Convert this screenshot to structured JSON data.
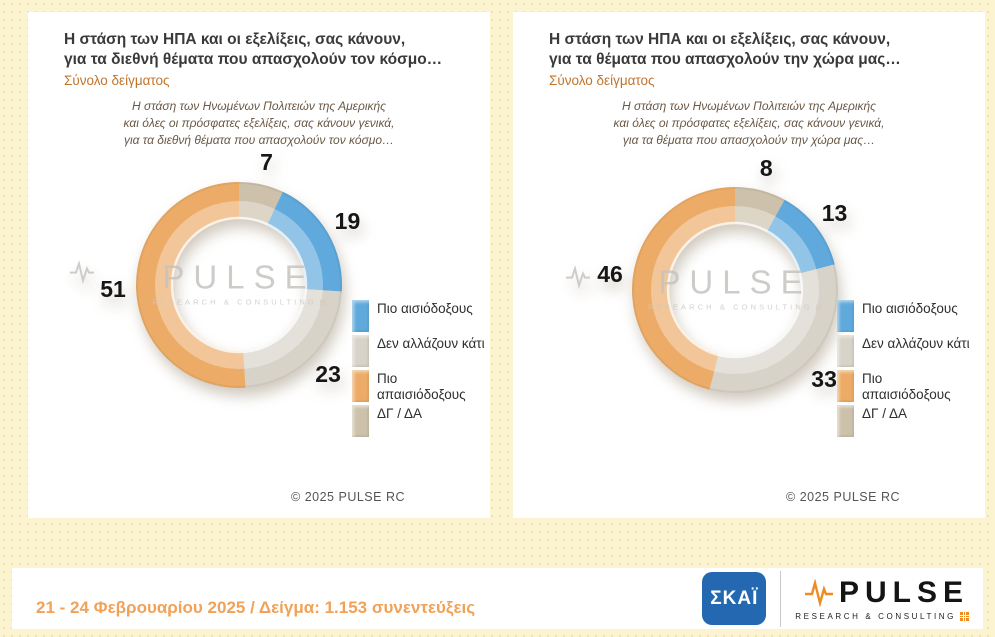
{
  "legend": {
    "items": [
      {
        "label": "Πιο αισιόδοξους",
        "color": "#5fa9dc"
      },
      {
        "label": "Δεν αλλάζουν κάτι",
        "color": "#d8d3c9"
      },
      {
        "label": "Πιο απαισιόδοξους",
        "color": "#ecac68"
      },
      {
        "label": "ΔΓ / ΔΑ",
        "color": "#cdc1ab"
      }
    ],
    "position": "right"
  },
  "watermark": {
    "name": "PULSE",
    "sub": "RESEARCH & CONSULTING"
  },
  "footer": {
    "note": "21 - 24 Φεβρουαρίου 2025  /  Δείγμα:  1.153 συνεντεύξεις",
    "skai_logo": "ΣΚΑΪ",
    "pulse_logo": "PULSE",
    "pulse_logo_sub": "RESEARCH & CONSULTING"
  },
  "chart_data": [
    {
      "type": "pie",
      "style": "donut",
      "title_lines": [
        "Η στάση των ΗΠΑ και οι εξελίξεις, σας κάνουν,",
        "για τα διεθνή θέματα που απασχολούν τον κόσμο…"
      ],
      "subtitle": "Σύνολο δείγματος",
      "question_lines": [
        "Η στάση των Ηνωμένων Πολιτειών της Αμερικής",
        "και όλες οι πρόσφατες εξελίξεις, σας κάνουν γενικά,",
        "για τα διεθνή θέματα που απασχολούν τον κόσμο…"
      ],
      "categories": [
        "Πιο αισιόδοξους",
        "Δεν αλλάζουν κάτι",
        "Πιο απαισιόδοξους",
        "ΔΓ / ΔΑ"
      ],
      "values": [
        19,
        23,
        51,
        7
      ],
      "colors": [
        "#5fa9dc",
        "#d8d3c9",
        "#ecac68",
        "#cdc1ab"
      ],
      "draw_order": [
        3,
        0,
        1,
        2
      ],
      "start_angle_deg": 0,
      "copyright": "© 2025 PULSE RC"
    },
    {
      "type": "pie",
      "style": "donut",
      "title_lines": [
        "Η στάση των ΗΠΑ και οι εξελίξεις, σας κάνουν,",
        "για τα θέματα που απασχολούν την χώρα μας…"
      ],
      "subtitle": "Σύνολο δείγματος",
      "question_lines": [
        "Η στάση των Ηνωμένων Πολιτειών της Αμερικής",
        "και όλες οι πρόσφατες εξελίξεις, σας κάνουν γενικά,",
        "για τα θέματα που απασχολούν την χώρα μας…"
      ],
      "categories": [
        "Πιο αισιόδοξους",
        "Δεν αλλάζουν κάτι",
        "Πιο απαισιόδοξους",
        "ΔΓ / ΔΑ"
      ],
      "values": [
        13,
        33,
        46,
        8
      ],
      "colors": [
        "#5fa9dc",
        "#d8d3c9",
        "#ecac68",
        "#cdc1ab"
      ],
      "draw_order": [
        3,
        0,
        1,
        2
      ],
      "start_angle_deg": 0,
      "copyright": "© 2025 PULSE RC"
    }
  ]
}
